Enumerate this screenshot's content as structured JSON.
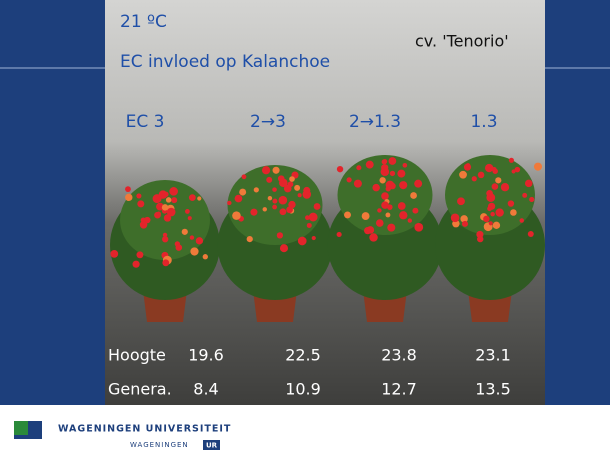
{
  "slide": {
    "temperature": "21 ºC",
    "title": "EC invloed op Kalanchoe",
    "cultivar": "cv. 'Tenorio'",
    "treatments": [
      "EC 3",
      "2→3",
      "2→1.3",
      "1.3"
    ],
    "table": {
      "rows": [
        {
          "label": "Hoogte",
          "values": [
            19.6,
            22.5,
            23.8,
            23.1
          ]
        },
        {
          "label": "Genera.",
          "values": [
            8.4,
            10.9,
            12.7,
            13.5
          ]
        }
      ]
    }
  },
  "footer": {
    "university": "WAGENINGEN UNIVERSITEIT",
    "brand": "WAGENINGEN",
    "badge": "UR"
  }
}
